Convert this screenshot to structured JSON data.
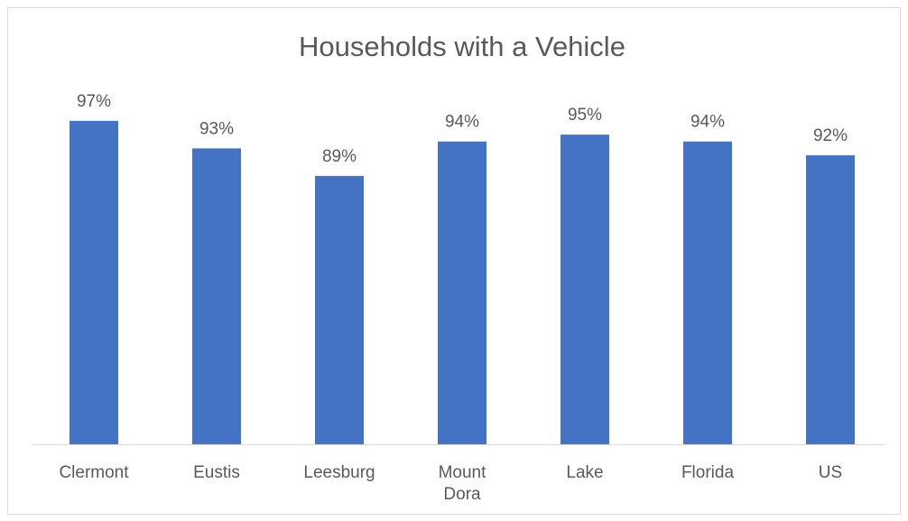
{
  "chart_data": {
    "type": "bar",
    "title": "Households with a Vehicle",
    "categories": [
      "Clermont",
      "Eustis",
      "Leesburg",
      "Mount Dora",
      "Lake",
      "Florida",
      "US"
    ],
    "values": [
      97,
      93,
      89,
      94,
      95,
      94,
      92
    ],
    "value_labels": [
      "97%",
      "93%",
      "89%",
      "94%",
      "95%",
      "94%",
      "92%"
    ],
    "color": "#4472c4",
    "ylim": [
      50,
      100
    ]
  }
}
